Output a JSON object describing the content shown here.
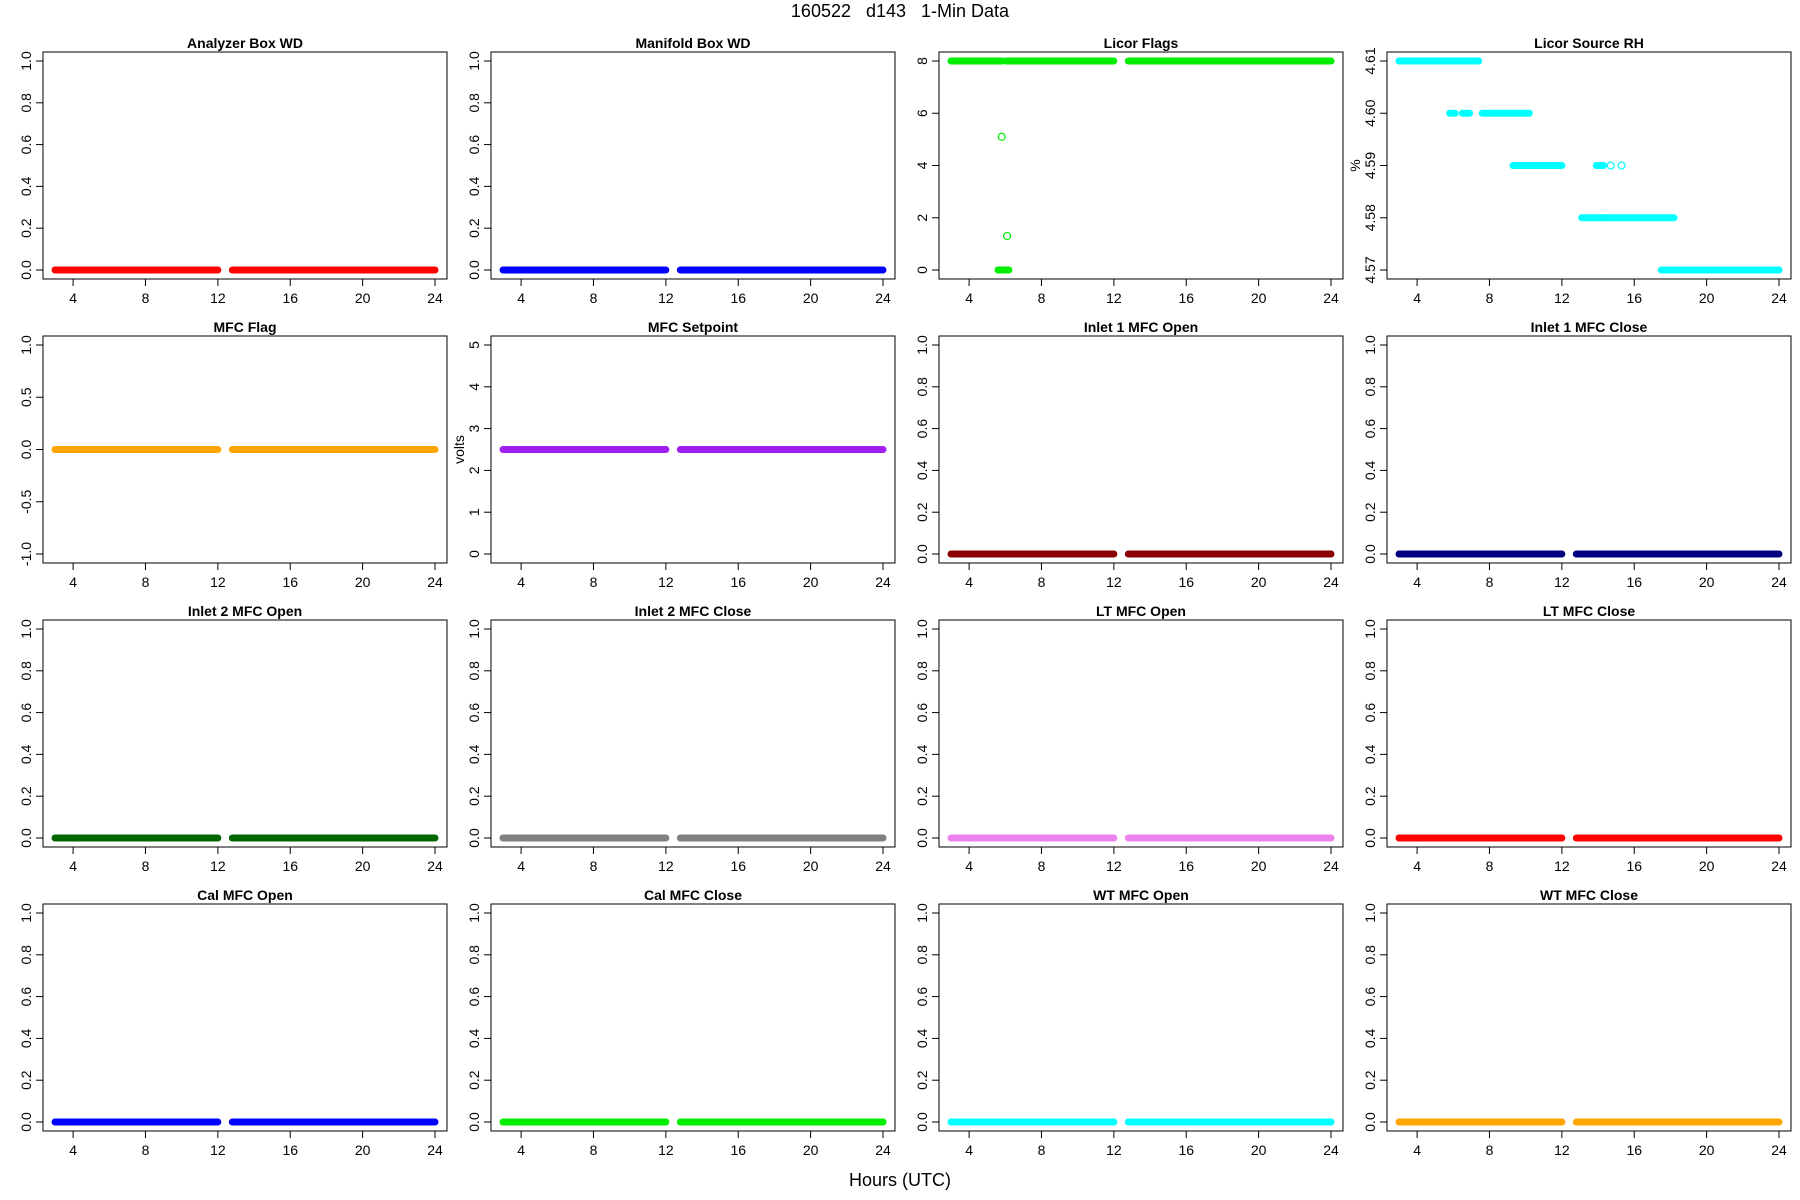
{
  "header": {
    "title": "160522   d143   1-Min Data",
    "xlabel": "Hours (UTC)"
  },
  "chart_data": [
    {
      "type": "scatter",
      "title": "Analyzer Box WD",
      "ylabel": "",
      "color": "#ff0000",
      "ylim": [
        0,
        1
      ],
      "yticks": [
        "0.0",
        "0.2",
        "0.4",
        "0.6",
        "0.8",
        "1.0"
      ],
      "xlim": [
        3,
        24
      ],
      "xticks": [
        "4",
        "8",
        "12",
        "16",
        "20",
        "24"
      ],
      "segments": [
        {
          "x": [
            3.0,
            12.0
          ],
          "y": 0
        },
        {
          "x": [
            12.8,
            24.0
          ],
          "y": 0
        }
      ]
    },
    {
      "type": "scatter",
      "title": "Manifold Box WD",
      "ylabel": "",
      "color": "#0000ff",
      "ylim": [
        0,
        1
      ],
      "yticks": [
        "0.0",
        "0.2",
        "0.4",
        "0.6",
        "0.8",
        "1.0"
      ],
      "xlim": [
        3,
        24
      ],
      "xticks": [
        "4",
        "8",
        "12",
        "16",
        "20",
        "24"
      ],
      "segments": [
        {
          "x": [
            3.0,
            12.0
          ],
          "y": 0
        },
        {
          "x": [
            12.8,
            24.0
          ],
          "y": 0
        }
      ]
    },
    {
      "type": "scatter",
      "title": "Licor Flags",
      "ylabel": "",
      "color": "#00ee00",
      "ylim": [
        0,
        8
      ],
      "yticks": [
        "0",
        "2",
        "4",
        "6",
        "8"
      ],
      "xlim": [
        3,
        24
      ],
      "xticks": [
        "4",
        "8",
        "12",
        "16",
        "20",
        "24"
      ],
      "segments": [
        {
          "x": [
            3.0,
            5.8
          ],
          "y": 8
        },
        {
          "x": [
            6.0,
            12.0
          ],
          "y": 8
        },
        {
          "x": [
            12.8,
            24.0
          ],
          "y": 8
        },
        {
          "x": [
            5.6,
            6.2
          ],
          "y": 0
        }
      ],
      "points": [
        {
          "x": 5.8,
          "y": 5.1
        },
        {
          "x": 6.1,
          "y": 1.3
        }
      ]
    },
    {
      "type": "scatter",
      "title": "Licor Source RH",
      "ylabel": "%",
      "color": "#00ffff",
      "ylim": [
        4.57,
        4.61
      ],
      "yticks": [
        "4.57",
        "4.58",
        "4.59",
        "4.60",
        "4.61"
      ],
      "xlim": [
        3,
        24
      ],
      "xticks": [
        "4",
        "8",
        "12",
        "16",
        "20",
        "24"
      ],
      "segments": [
        {
          "x": [
            3.0,
            7.4
          ],
          "y": 4.61
        },
        {
          "x": 7.4,
          "y": 4.61
        },
        {
          "x": [
            5.8,
            6.1
          ],
          "y": 4.6
        },
        {
          "x": [
            6.5,
            6.9
          ],
          "y": 4.6
        },
        {
          "x": [
            7.6,
            10.2
          ],
          "y": 4.6
        },
        {
          "x": [
            9.3,
            12.0
          ],
          "y": 4.59
        },
        {
          "x": [
            13.9,
            14.3
          ],
          "y": 4.59
        },
        {
          "x": [
            13.1,
            14.2
          ],
          "y": 4.58
        },
        {
          "x": [
            14.2,
            18.2
          ],
          "y": 4.58
        },
        {
          "x": [
            17.5,
            24.0
          ],
          "y": 4.57
        }
      ],
      "points": [
        {
          "x": 15.3,
          "y": 4.59
        },
        {
          "x": 14.7,
          "y": 4.59
        }
      ]
    },
    {
      "type": "scatter",
      "title": "MFC Flag",
      "ylabel": "",
      "color": "#ffa500",
      "ylim": [
        -1,
        1
      ],
      "yticks": [
        "-1.0",
        "-0.5",
        "0.0",
        "0.5",
        "1.0"
      ],
      "xlim": [
        3,
        24
      ],
      "xticks": [
        "4",
        "8",
        "12",
        "16",
        "20",
        "24"
      ],
      "segments": [
        {
          "x": [
            3.0,
            12.0
          ],
          "y": 0
        },
        {
          "x": [
            12.8,
            24.0
          ],
          "y": 0
        }
      ]
    },
    {
      "type": "scatter",
      "title": "MFC Setpoint",
      "ylabel": "volts",
      "color": "#a020f0",
      "ylim": [
        0,
        5
      ],
      "yticks": [
        "0",
        "1",
        "2",
        "3",
        "4",
        "5"
      ],
      "xlim": [
        3,
        24
      ],
      "xticks": [
        "4",
        "8",
        "12",
        "16",
        "20",
        "24"
      ],
      "segments": [
        {
          "x": [
            3.0,
            12.0
          ],
          "y": 2.5
        },
        {
          "x": [
            12.8,
            24.0
          ],
          "y": 2.5
        }
      ]
    },
    {
      "type": "scatter",
      "title": "Inlet 1 MFC Open",
      "ylabel": "",
      "color": "#8b0000",
      "ylim": [
        0,
        1
      ],
      "yticks": [
        "0.0",
        "0.2",
        "0.4",
        "0.6",
        "0.8",
        "1.0"
      ],
      "xlim": [
        3,
        24
      ],
      "xticks": [
        "4",
        "8",
        "12",
        "16",
        "20",
        "24"
      ],
      "segments": [
        {
          "x": [
            3.0,
            12.0
          ],
          "y": 0
        },
        {
          "x": [
            12.8,
            24.0
          ],
          "y": 0
        }
      ]
    },
    {
      "type": "scatter",
      "title": "Inlet 1 MFC Close",
      "ylabel": "",
      "color": "#000080",
      "ylim": [
        0,
        1
      ],
      "yticks": [
        "0.0",
        "0.2",
        "0.4",
        "0.6",
        "0.8",
        "1.0"
      ],
      "xlim": [
        3,
        24
      ],
      "xticks": [
        "4",
        "8",
        "12",
        "16",
        "20",
        "24"
      ],
      "segments": [
        {
          "x": [
            3.0,
            12.0
          ],
          "y": 0
        },
        {
          "x": [
            12.8,
            24.0
          ],
          "y": 0
        }
      ]
    },
    {
      "type": "scatter",
      "title": "Inlet 2 MFC Open",
      "ylabel": "",
      "color": "#006400",
      "ylim": [
        0,
        1
      ],
      "yticks": [
        "0.0",
        "0.2",
        "0.4",
        "0.6",
        "0.8",
        "1.0"
      ],
      "xlim": [
        3,
        24
      ],
      "xticks": [
        "4",
        "8",
        "12",
        "16",
        "20",
        "24"
      ],
      "segments": [
        {
          "x": [
            3.0,
            12.0
          ],
          "y": 0
        },
        {
          "x": [
            12.8,
            24.0
          ],
          "y": 0
        }
      ]
    },
    {
      "type": "scatter",
      "title": "Inlet 2 MFC Close",
      "ylabel": "",
      "color": "#808080",
      "ylim": [
        0,
        1
      ],
      "yticks": [
        "0.0",
        "0.2",
        "0.4",
        "0.6",
        "0.8",
        "1.0"
      ],
      "xlim": [
        3,
        24
      ],
      "xticks": [
        "4",
        "8",
        "12",
        "16",
        "20",
        "24"
      ],
      "segments": [
        {
          "x": [
            3.0,
            12.0
          ],
          "y": 0
        },
        {
          "x": [
            12.8,
            24.0
          ],
          "y": 0
        }
      ]
    },
    {
      "type": "scatter",
      "title": "LT MFC Open",
      "ylabel": "",
      "color": "#ee82ee",
      "ylim": [
        0,
        1
      ],
      "yticks": [
        "0.0",
        "0.2",
        "0.4",
        "0.6",
        "0.8",
        "1.0"
      ],
      "xlim": [
        3,
        24
      ],
      "xticks": [
        "4",
        "8",
        "12",
        "16",
        "20",
        "24"
      ],
      "segments": [
        {
          "x": [
            3.0,
            12.0
          ],
          "y": 0
        },
        {
          "x": [
            12.8,
            24.0
          ],
          "y": 0
        }
      ]
    },
    {
      "type": "scatter",
      "title": "LT MFC Close",
      "ylabel": "",
      "color": "#ff0000",
      "ylim": [
        0,
        1
      ],
      "yticks": [
        "0.0",
        "0.2",
        "0.4",
        "0.6",
        "0.8",
        "1.0"
      ],
      "xlim": [
        3,
        24
      ],
      "xticks": [
        "4",
        "8",
        "12",
        "16",
        "20",
        "24"
      ],
      "segments": [
        {
          "x": [
            3.0,
            12.0
          ],
          "y": 0
        },
        {
          "x": [
            12.8,
            24.0
          ],
          "y": 0
        }
      ]
    },
    {
      "type": "scatter",
      "title": "Cal MFC Open",
      "ylabel": "",
      "color": "#0000ff",
      "ylim": [
        0,
        1
      ],
      "yticks": [
        "0.0",
        "0.2",
        "0.4",
        "0.6",
        "0.8",
        "1.0"
      ],
      "xlim": [
        3,
        24
      ],
      "xticks": [
        "4",
        "8",
        "12",
        "16",
        "20",
        "24"
      ],
      "segments": [
        {
          "x": [
            3.0,
            12.0
          ],
          "y": 0
        },
        {
          "x": [
            12.8,
            24.0
          ],
          "y": 0
        }
      ]
    },
    {
      "type": "scatter",
      "title": "Cal MFC Close",
      "ylabel": "",
      "color": "#00ee00",
      "ylim": [
        0,
        1
      ],
      "yticks": [
        "0.0",
        "0.2",
        "0.4",
        "0.6",
        "0.8",
        "1.0"
      ],
      "xlim": [
        3,
        24
      ],
      "xticks": [
        "4",
        "8",
        "12",
        "16",
        "20",
        "24"
      ],
      "segments": [
        {
          "x": [
            3.0,
            12.0
          ],
          "y": 0
        },
        {
          "x": [
            12.8,
            24.0
          ],
          "y": 0
        }
      ]
    },
    {
      "type": "scatter",
      "title": "WT MFC Open",
      "ylabel": "",
      "color": "#00ffff",
      "ylim": [
        0,
        1
      ],
      "yticks": [
        "0.0",
        "0.2",
        "0.4",
        "0.6",
        "0.8",
        "1.0"
      ],
      "xlim": [
        3,
        24
      ],
      "xticks": [
        "4",
        "8",
        "12",
        "16",
        "20",
        "24"
      ],
      "segments": [
        {
          "x": [
            3.0,
            12.0
          ],
          "y": 0
        },
        {
          "x": [
            12.8,
            24.0
          ],
          "y": 0
        }
      ]
    },
    {
      "type": "scatter",
      "title": "WT MFC Close",
      "ylabel": "",
      "color": "#ffa500",
      "ylim": [
        0,
        1
      ],
      "yticks": [
        "0.0",
        "0.2",
        "0.4",
        "0.6",
        "0.8",
        "1.0"
      ],
      "xlim": [
        3,
        24
      ],
      "xticks": [
        "4",
        "8",
        "12",
        "16",
        "20",
        "24"
      ],
      "segments": [
        {
          "x": [
            3.0,
            12.0
          ],
          "y": 0
        },
        {
          "x": [
            12.8,
            24.0
          ],
          "y": 0
        }
      ]
    }
  ]
}
